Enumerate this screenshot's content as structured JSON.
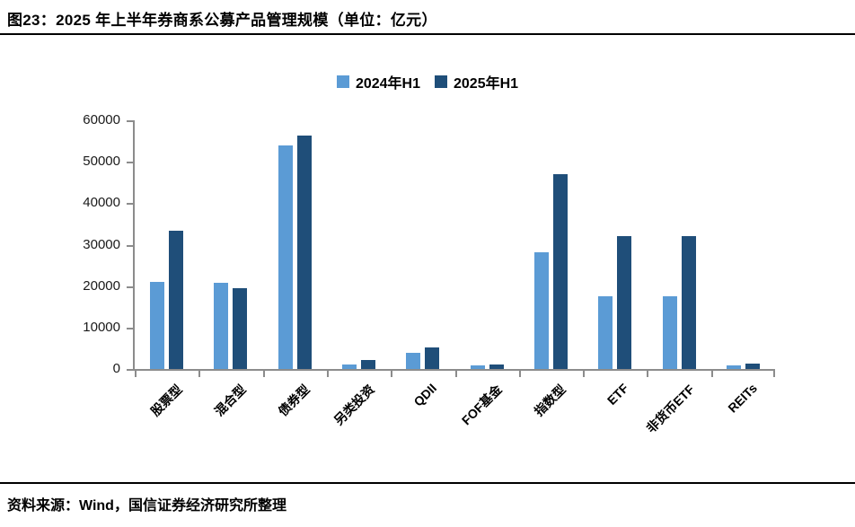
{
  "figure": {
    "title": "图23：2025 年上半年券商系公募产品管理规模（单位：亿元）",
    "source": "资料来源：Wind，国信证券经济研究所整理"
  },
  "colors": {
    "series_2024": "#5B9BD5",
    "series_2025": "#1F4E79",
    "axis": "#8C8C8C",
    "divider": "#000000",
    "text": "#000000"
  },
  "chart_data": {
    "type": "bar",
    "title": "2025 年上半年券商系公募产品管理规模",
    "unit": "亿元",
    "categories": [
      "股票型",
      "混合型",
      "债券型",
      "另类投资",
      "QDII",
      "FOF基金",
      "指数型",
      "ETF",
      "非货币ETF",
      "REITs"
    ],
    "series": [
      {
        "name": "2024年H1",
        "color": "#5B9BD5",
        "values": [
          21000,
          20800,
          54000,
          1000,
          3800,
          900,
          28200,
          17500,
          17500,
          900
        ]
      },
      {
        "name": "2025年H1",
        "color": "#1F4E79",
        "values": [
          33300,
          19500,
          56300,
          2200,
          5200,
          1100,
          47000,
          32000,
          32000,
          1300
        ]
      }
    ],
    "ylim": [
      0,
      60000
    ],
    "y_ticks": [
      0,
      10000,
      20000,
      30000,
      40000,
      50000,
      60000
    ],
    "grid": false,
    "legend_position": "top-center",
    "xlabel": "",
    "ylabel": ""
  }
}
